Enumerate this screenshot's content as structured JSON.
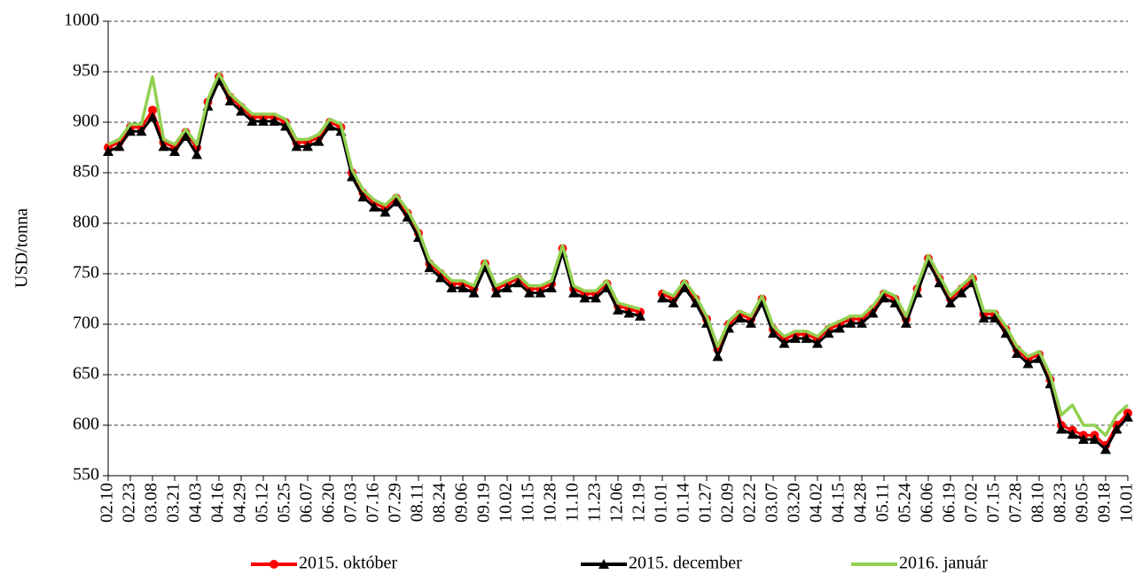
{
  "chart_data": {
    "type": "line",
    "y_label": "USD/tonna",
    "categories": [
      "02.10",
      null,
      "02.23",
      null,
      "03.08",
      null,
      "03.21",
      null,
      "04.03",
      null,
      "04.16",
      null,
      "04.29",
      null,
      "05.12",
      null,
      "05.25",
      null,
      "06.07",
      null,
      "06.20",
      null,
      "07.03",
      null,
      "07.16",
      null,
      "07.29",
      null,
      "08.11",
      null,
      "08.24",
      null,
      "09.06",
      null,
      "09.19",
      null,
      "10.02",
      null,
      "10.15",
      null,
      "10.28",
      null,
      "11.10",
      null,
      "11.23",
      null,
      "12.06",
      null,
      "12.19",
      null,
      "01.01",
      null,
      "01.14",
      null,
      "01.27",
      null,
      "02.09",
      null,
      "02.22",
      null,
      "03.07",
      null,
      "03.20",
      null,
      "04.02",
      null,
      "04.15",
      null,
      "04.28",
      null,
      "05.11",
      null,
      "05.24",
      null,
      "06.06",
      null,
      "06.19",
      null,
      "07.02",
      null,
      "07.15",
      null,
      "07.28",
      null,
      "08.10",
      null,
      "08.23",
      null,
      "09.05",
      null,
      "09.18",
      null,
      "10.01"
    ],
    "series": [
      {
        "name": "2015. október",
        "color": "#ff0000",
        "marker": "circle",
        "values": [
          875,
          880,
          895,
          895,
          912,
          880,
          875,
          890,
          875,
          920,
          945,
          925,
          915,
          905,
          905,
          905,
          900,
          880,
          880,
          885,
          900,
          895,
          850,
          830,
          820,
          815,
          825,
          810,
          790,
          760,
          750,
          740,
          740,
          735,
          760,
          735,
          740,
          745,
          735,
          735,
          740,
          775,
          735,
          730,
          730,
          740,
          718,
          715,
          712,
          null,
          730,
          725,
          740,
          725,
          705,
          675,
          700,
          710,
          705,
          725,
          695,
          685,
          690,
          690,
          685,
          695,
          700,
          705,
          705,
          715,
          730,
          725,
          705,
          735,
          765,
          745,
          725,
          735,
          745,
          710,
          710,
          695,
          675,
          665,
          670,
          645,
          600,
          595,
          590,
          590,
          580,
          600,
          612
        ]
      },
      {
        "name": "2015. december",
        "color": "#000000",
        "marker": "triangle",
        "values": [
          871,
          876,
          891,
          891,
          905,
          876,
          871,
          886,
          868,
          916,
          941,
          921,
          911,
          901,
          901,
          901,
          896,
          876,
          876,
          881,
          896,
          891,
          846,
          826,
          816,
          811,
          821,
          806,
          786,
          756,
          746,
          736,
          736,
          731,
          756,
          731,
          736,
          741,
          731,
          731,
          736,
          771,
          731,
          726,
          726,
          736,
          714,
          711,
          708,
          null,
          726,
          721,
          736,
          721,
          701,
          668,
          696,
          706,
          701,
          721,
          691,
          681,
          686,
          686,
          681,
          691,
          696,
          701,
          701,
          711,
          726,
          721,
          701,
          731,
          761,
          741,
          721,
          731,
          741,
          706,
          706,
          691,
          671,
          661,
          666,
          641,
          596,
          591,
          586,
          586,
          576,
          596,
          608
        ]
      },
      {
        "name": "2016. január",
        "color": "#92d050",
        "marker": "none",
        "values": [
          878,
          883,
          898,
          898,
          945,
          883,
          878,
          893,
          878,
          923,
          948,
          928,
          918,
          908,
          908,
          908,
          903,
          883,
          883,
          888,
          903,
          898,
          853,
          833,
          823,
          818,
          828,
          813,
          793,
          763,
          753,
          743,
          743,
          738,
          763,
          738,
          743,
          748,
          738,
          738,
          743,
          778,
          738,
          733,
          733,
          743,
          721,
          718,
          715,
          null,
          733,
          728,
          743,
          728,
          708,
          678,
          703,
          713,
          708,
          728,
          698,
          688,
          693,
          693,
          688,
          698,
          703,
          708,
          708,
          718,
          733,
          728,
          708,
          738,
          768,
          748,
          728,
          738,
          748,
          713,
          713,
          698,
          678,
          668,
          673,
          650,
          610,
          620,
          600,
          600,
          590,
          610,
          620
        ]
      }
    ],
    "ylim": [
      550,
      1000
    ],
    "yticks": [
      550,
      600,
      650,
      700,
      750,
      800,
      850,
      900,
      950,
      1000
    ],
    "grid": true,
    "legend": "bottom"
  }
}
